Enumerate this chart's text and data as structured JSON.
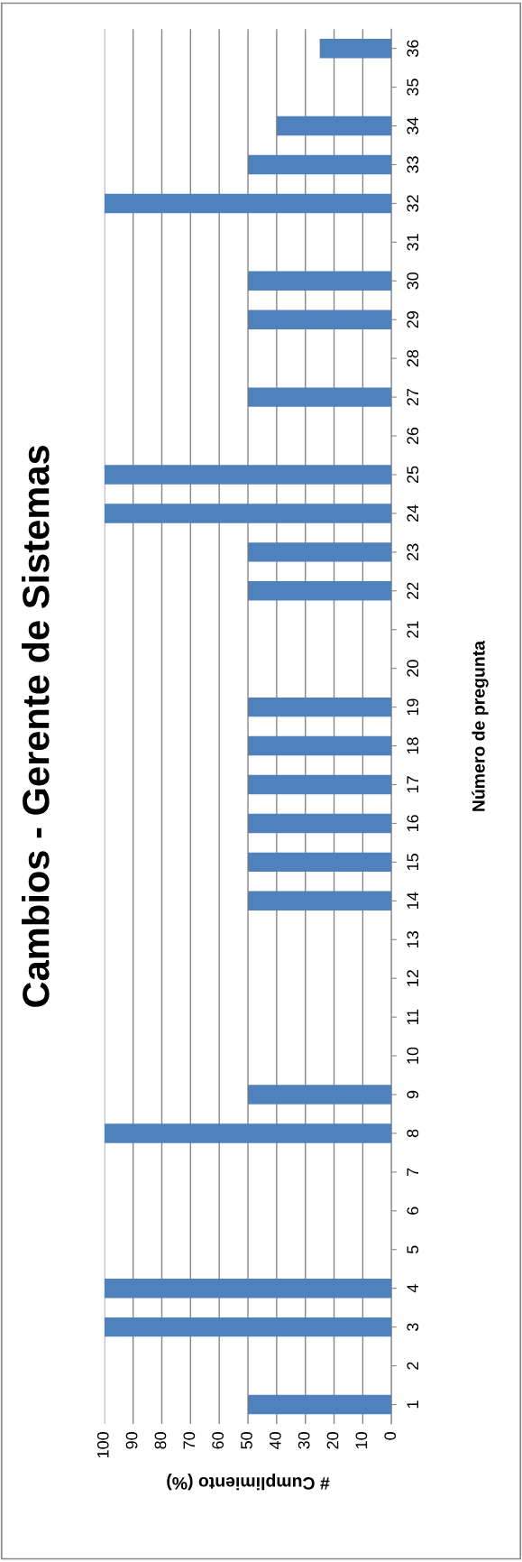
{
  "chart_data": {
    "type": "bar",
    "orientation": "horizontal",
    "title": "Cambios - Gerente de Sistemas",
    "xlabel": "# Cumplimiento (%)",
    "ylabel": "Número de pregunta",
    "categories": [
      "36",
      "35",
      "34",
      "33",
      "32",
      "31",
      "30",
      "29",
      "28",
      "27",
      "26",
      "25",
      "24",
      "23",
      "22",
      "21",
      "20",
      "19",
      "18",
      "17",
      "16",
      "15",
      "14",
      "13",
      "12",
      "11",
      "10",
      "9",
      "8",
      "7",
      "6",
      "5",
      "4",
      "3",
      "2",
      "1"
    ],
    "values": [
      25,
      0,
      40,
      50,
      100,
      0,
      50,
      50,
      0,
      50,
      0,
      100,
      100,
      50,
      50,
      0,
      0,
      50,
      50,
      50,
      50,
      50,
      50,
      0,
      0,
      0,
      0,
      50,
      100,
      0,
      0,
      0,
      100,
      100,
      0,
      50
    ],
    "color": "#4f81bd",
    "xlim": [
      100,
      0
    ],
    "xticks": [
      0,
      10,
      20,
      30,
      40,
      50,
      60,
      70,
      80,
      90,
      100
    ],
    "grid": "x",
    "legend": false
  }
}
